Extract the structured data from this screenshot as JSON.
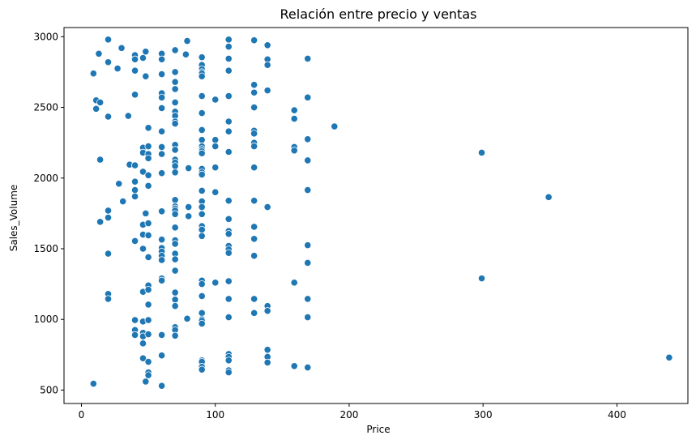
{
  "chart_data": {
    "type": "scatter",
    "title": "Relación entre precio y ventas",
    "xlabel": "Price",
    "ylabel": "Sales_Volume",
    "xlim": [
      -13,
      453
    ],
    "ylim": [
      405,
      3065
    ],
    "xticks": [
      0,
      100,
      200,
      300,
      400
    ],
    "yticks": [
      500,
      1000,
      1500,
      2000,
      2500,
      3000
    ],
    "grid": false,
    "legend": "none",
    "color": "#1f77b4",
    "points": [
      [
        9,
        2740
      ],
      [
        9,
        545
      ],
      [
        11,
        2550
      ],
      [
        11,
        2490
      ],
      [
        13,
        2880
      ],
      [
        14,
        2535
      ],
      [
        14,
        2130
      ],
      [
        14,
        1690
      ],
      [
        20,
        2980
      ],
      [
        20,
        2820
      ],
      [
        20,
        2435
      ],
      [
        20,
        1770
      ],
      [
        20,
        1720
      ],
      [
        20,
        1465
      ],
      [
        20,
        1180
      ],
      [
        20,
        1145
      ],
      [
        27,
        2775
      ],
      [
        28,
        1960
      ],
      [
        30,
        2920
      ],
      [
        31,
        1835
      ],
      [
        35,
        2440
      ],
      [
        36,
        2095
      ],
      [
        40,
        2870
      ],
      [
        40,
        2840
      ],
      [
        40,
        2760
      ],
      [
        40,
        2590
      ],
      [
        40,
        2090
      ],
      [
        40,
        1975
      ],
      [
        40,
        1915
      ],
      [
        40,
        1870
      ],
      [
        40,
        1555
      ],
      [
        40,
        995
      ],
      [
        40,
        925
      ],
      [
        40,
        890
      ],
      [
        46,
        2850
      ],
      [
        46,
        2215
      ],
      [
        46,
        2180
      ],
      [
        46,
        2045
      ],
      [
        46,
        1670
      ],
      [
        46,
        1600
      ],
      [
        46,
        1500
      ],
      [
        46,
        1195
      ],
      [
        46,
        985
      ],
      [
        46,
        905
      ],
      [
        46,
        880
      ],
      [
        46,
        830
      ],
      [
        46,
        725
      ],
      [
        48,
        2895
      ],
      [
        48,
        2720
      ],
      [
        48,
        1750
      ],
      [
        48,
        560
      ],
      [
        50,
        2355
      ],
      [
        50,
        2225
      ],
      [
        50,
        2170
      ],
      [
        50,
        2140
      ],
      [
        50,
        2020
      ],
      [
        50,
        1945
      ],
      [
        50,
        1680
      ],
      [
        50,
        1595
      ],
      [
        50,
        1440
      ],
      [
        50,
        1240
      ],
      [
        50,
        1210
      ],
      [
        50,
        1105
      ],
      [
        50,
        995
      ],
      [
        50,
        895
      ],
      [
        50,
        700
      ],
      [
        50,
        625
      ],
      [
        50,
        605
      ],
      [
        60,
        2880
      ],
      [
        60,
        2840
      ],
      [
        60,
        2735
      ],
      [
        60,
        2600
      ],
      [
        60,
        2570
      ],
      [
        60,
        2495
      ],
      [
        60,
        2330
      ],
      [
        60,
        2220
      ],
      [
        60,
        2170
      ],
      [
        60,
        2035
      ],
      [
        60,
        1765
      ],
      [
        60,
        1565
      ],
      [
        60,
        1505
      ],
      [
        60,
        1480
      ],
      [
        60,
        1450
      ],
      [
        60,
        1420
      ],
      [
        60,
        1290
      ],
      [
        60,
        1275
      ],
      [
        60,
        890
      ],
      [
        60,
        745
      ],
      [
        60,
        530
      ],
      [
        70,
        2905
      ],
      [
        70,
        2750
      ],
      [
        70,
        2680
      ],
      [
        70,
        2630
      ],
      [
        70,
        2535
      ],
      [
        70,
        2470
      ],
      [
        70,
        2440
      ],
      [
        70,
        2400
      ],
      [
        70,
        2385
      ],
      [
        70,
        2235
      ],
      [
        70,
        2200
      ],
      [
        70,
        2130
      ],
      [
        70,
        2110
      ],
      [
        70,
        2085
      ],
      [
        70,
        2040
      ],
      [
        70,
        1845
      ],
      [
        70,
        1800
      ],
      [
        70,
        1785
      ],
      [
        70,
        1770
      ],
      [
        70,
        1745
      ],
      [
        70,
        1650
      ],
      [
        70,
        1560
      ],
      [
        70,
        1535
      ],
      [
        70,
        1465
      ],
      [
        70,
        1425
      ],
      [
        70,
        1345
      ],
      [
        70,
        1190
      ],
      [
        70,
        1140
      ],
      [
        70,
        1095
      ],
      [
        70,
        945
      ],
      [
        70,
        925
      ],
      [
        70,
        885
      ],
      [
        78,
        2875
      ],
      [
        79,
        2970
      ],
      [
        79,
        1005
      ],
      [
        80,
        2070
      ],
      [
        80,
        1795
      ],
      [
        80,
        1730
      ],
      [
        90,
        2855
      ],
      [
        90,
        2800
      ],
      [
        90,
        2770
      ],
      [
        90,
        2750
      ],
      [
        90,
        2740
      ],
      [
        90,
        2720
      ],
      [
        90,
        2580
      ],
      [
        90,
        2460
      ],
      [
        90,
        2340
      ],
      [
        90,
        2270
      ],
      [
        90,
        2225
      ],
      [
        90,
        2205
      ],
      [
        90,
        2190
      ],
      [
        90,
        2175
      ],
      [
        90,
        2065
      ],
      [
        90,
        2040
      ],
      [
        90,
        2025
      ],
      [
        90,
        1910
      ],
      [
        90,
        1835
      ],
      [
        90,
        1795
      ],
      [
        90,
        1745
      ],
      [
        90,
        1660
      ],
      [
        90,
        1635
      ],
      [
        90,
        1590
      ],
      [
        90,
        1275
      ],
      [
        90,
        1250
      ],
      [
        90,
        1165
      ],
      [
        90,
        1045
      ],
      [
        90,
        1000
      ],
      [
        90,
        990
      ],
      [
        90,
        970
      ],
      [
        90,
        710
      ],
      [
        90,
        700
      ],
      [
        90,
        665
      ],
      [
        90,
        645
      ],
      [
        100,
        2555
      ],
      [
        100,
        2270
      ],
      [
        100,
        2225
      ],
      [
        100,
        2075
      ],
      [
        100,
        1900
      ],
      [
        100,
        1260
      ],
      [
        110,
        2980
      ],
      [
        110,
        2930
      ],
      [
        110,
        2845
      ],
      [
        110,
        2760
      ],
      [
        110,
        2580
      ],
      [
        110,
        2400
      ],
      [
        110,
        2330
      ],
      [
        110,
        2185
      ],
      [
        110,
        1840
      ],
      [
        110,
        1710
      ],
      [
        110,
        1625
      ],
      [
        110,
        1605
      ],
      [
        110,
        1520
      ],
      [
        110,
        1495
      ],
      [
        110,
        1470
      ],
      [
        110,
        1270
      ],
      [
        110,
        1145
      ],
      [
        110,
        1015
      ],
      [
        110,
        755
      ],
      [
        110,
        735
      ],
      [
        110,
        710
      ],
      [
        110,
        640
      ],
      [
        110,
        625
      ],
      [
        129,
        2975
      ],
      [
        129,
        2660
      ],
      [
        129,
        2605
      ],
      [
        129,
        2500
      ],
      [
        129,
        2335
      ],
      [
        129,
        2315
      ],
      [
        129,
        2250
      ],
      [
        129,
        2225
      ],
      [
        129,
        2075
      ],
      [
        129,
        1840
      ],
      [
        129,
        1655
      ],
      [
        129,
        1570
      ],
      [
        129,
        1450
      ],
      [
        129,
        1145
      ],
      [
        129,
        1045
      ],
      [
        139,
        2940
      ],
      [
        139,
        2840
      ],
      [
        139,
        2800
      ],
      [
        139,
        2620
      ],
      [
        139,
        1795
      ],
      [
        139,
        1095
      ],
      [
        139,
        1060
      ],
      [
        139,
        785
      ],
      [
        139,
        735
      ],
      [
        139,
        695
      ],
      [
        159,
        2480
      ],
      [
        159,
        2420
      ],
      [
        159,
        2220
      ],
      [
        159,
        2195
      ],
      [
        159,
        1260
      ],
      [
        159,
        670
      ],
      [
        169,
        2845
      ],
      [
        169,
        2570
      ],
      [
        169,
        2275
      ],
      [
        169,
        2125
      ],
      [
        169,
        1915
      ],
      [
        169,
        1525
      ],
      [
        169,
        1400
      ],
      [
        169,
        1145
      ],
      [
        169,
        1015
      ],
      [
        169,
        660
      ],
      [
        189,
        2365
      ],
      [
        299,
        2180
      ],
      [
        299,
        1290
      ],
      [
        349,
        1865
      ],
      [
        439,
        730
      ]
    ]
  }
}
